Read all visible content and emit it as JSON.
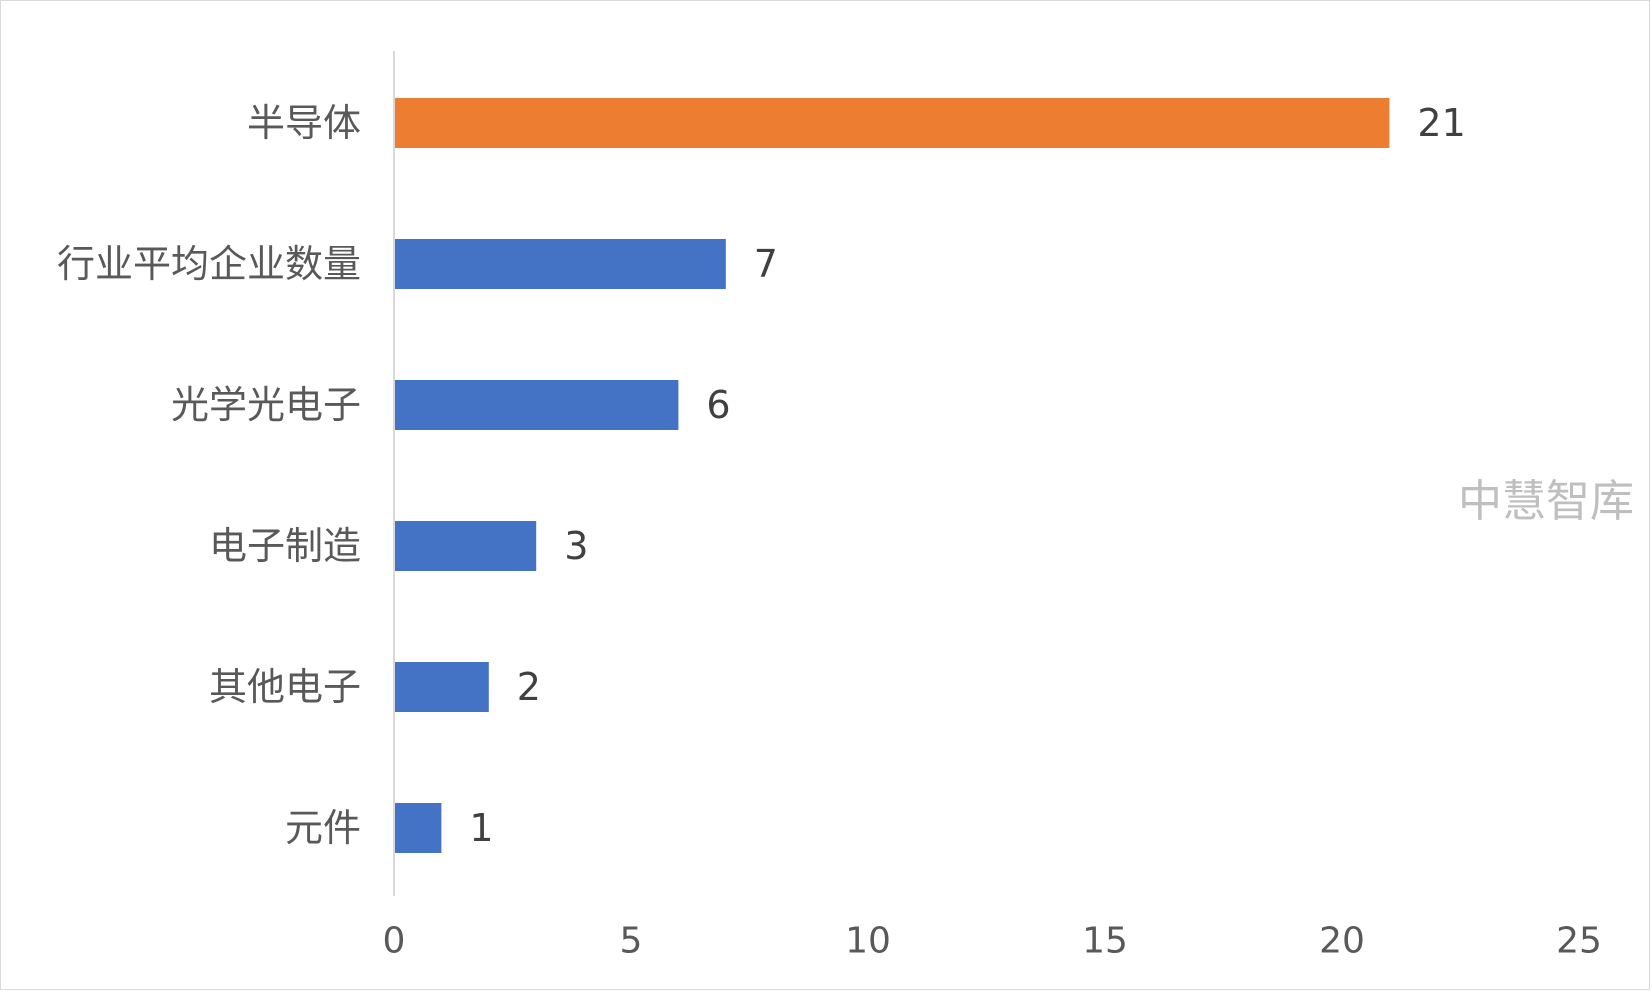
{
  "chart_data": {
    "type": "bar",
    "orientation": "horizontal",
    "categories": [
      "半导体",
      "行业平均企业数量",
      "光学光电子",
      "电子制造",
      "其他电子",
      "元件"
    ],
    "values": [
      21,
      7,
      6,
      3,
      2,
      1
    ],
    "value_labels": [
      "21",
      "7",
      "6",
      "3",
      "2",
      "1"
    ],
    "xlim": [
      0,
      25
    ],
    "xticks": [
      0,
      5,
      10,
      15,
      20,
      25
    ],
    "xtick_labels": [
      "0",
      "5",
      "10",
      "15",
      "20",
      "25"
    ],
    "grid": false,
    "legend": "none",
    "colors": {
      "highlight": "#ED7D31",
      "default": "#4472C4",
      "axis": "#d9d9d9"
    },
    "highlight_category": "半导体"
  },
  "watermark": "中慧智库"
}
